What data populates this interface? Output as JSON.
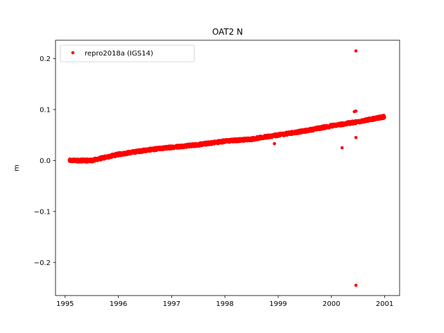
{
  "chart_data": {
    "type": "scatter",
    "title": "OAT2 N",
    "xlabel": "",
    "ylabel": "m",
    "xlim": [
      1994.82,
      2001.28
    ],
    "ylim": [
      -0.265,
      0.236
    ],
    "xticks": [
      1995,
      1996,
      1997,
      1998,
      1999,
      2000,
      2001
    ],
    "xtick_labels": [
      "1995",
      "1996",
      "1997",
      "1998",
      "1999",
      "2000",
      "2001"
    ],
    "yticks": [
      -0.2,
      -0.1,
      0.0,
      0.1,
      0.2
    ],
    "ytick_labels": [
      "−0.2",
      "−0.1",
      "0.0",
      "0.1",
      "0.2"
    ],
    "grid": false,
    "legend": {
      "placement": "top-left",
      "entries": [
        "repro2018a (IGS14)"
      ]
    },
    "series": [
      {
        "name": "repro2018a (IGS14)",
        "color": "#ff0000",
        "marker": "circle",
        "trend": {
          "x_start": 1995.08,
          "x_end": 2001.0,
          "anchors": [
            [
              1995.08,
              0.0
            ],
            [
              1995.5,
              0.0
            ],
            [
              1996.0,
              0.012
            ],
            [
              1996.5,
              0.02
            ],
            [
              1997.0,
              0.026
            ],
            [
              1997.5,
              0.031
            ],
            [
              1998.0,
              0.038
            ],
            [
              1998.5,
              0.042
            ],
            [
              1999.0,
              0.05
            ],
            [
              1999.5,
              0.058
            ],
            [
              2000.0,
              0.068
            ],
            [
              2000.5,
              0.076
            ],
            [
              2001.0,
              0.086
            ]
          ]
        },
        "outliers": [
          [
            2000.46,
            0.215
          ],
          [
            2000.43,
            0.096
          ],
          [
            2000.46,
            0.097
          ],
          [
            2000.46,
            0.045
          ],
          [
            2000.2,
            0.025
          ],
          [
            2000.46,
            -0.245
          ],
          [
            1998.93,
            0.033
          ]
        ]
      }
    ]
  }
}
